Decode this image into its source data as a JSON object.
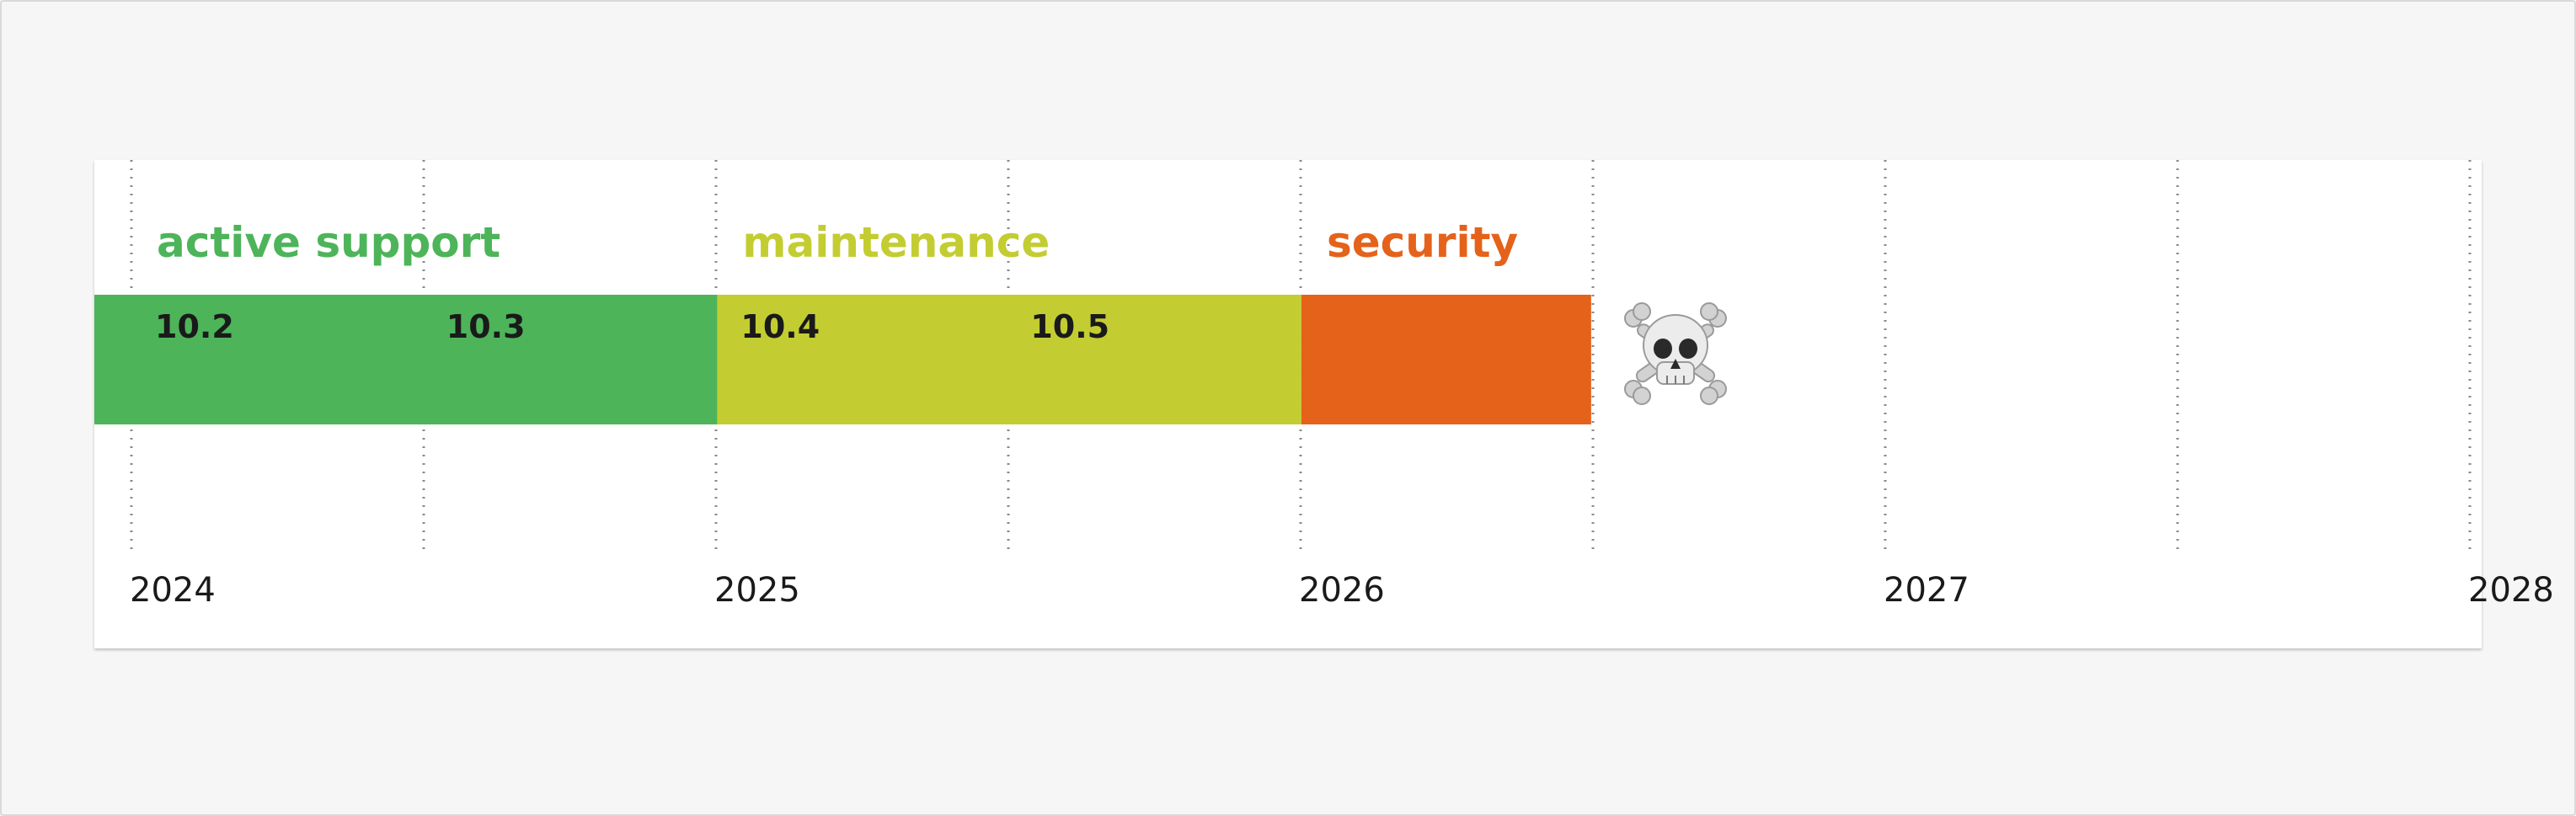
{
  "chart_data": {
    "type": "timeline",
    "title": "",
    "phases": [
      {
        "name": "active support",
        "start": "2023-11-01",
        "end": "2025-01-01",
        "color": "#4db45a"
      },
      {
        "name": "maintenance",
        "start": "2025-01-01",
        "end": "2026-01-01",
        "color": "#c3cd32"
      },
      {
        "name": "security",
        "start": "2026-01-01",
        "end": "2026-07-01",
        "color": "#e5621b"
      }
    ],
    "versions": [
      {
        "label": "10.2",
        "date": "2024-01-01"
      },
      {
        "label": "10.3",
        "date": "2024-07-01"
      },
      {
        "label": "10.4",
        "date": "2025-01-01"
      },
      {
        "label": "10.5",
        "date": "2025-07-01"
      }
    ],
    "end_of_life": {
      "date": "2026-07-01",
      "icon": "skull-and-crossbones-icon"
    },
    "x_axis": {
      "ticks": [
        "2024",
        "2025",
        "2026",
        "2027",
        "2028"
      ],
      "minor_gridlines": "every 6 months",
      "grid_style": "dotted"
    }
  }
}
